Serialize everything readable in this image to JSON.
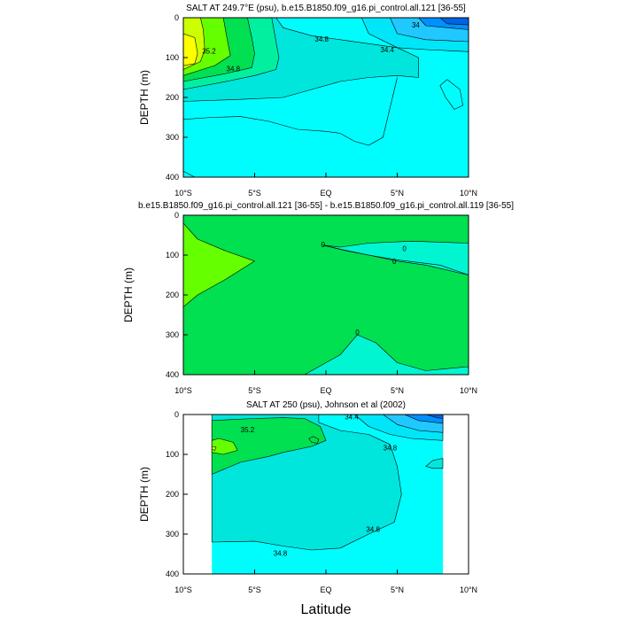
{
  "figure": {
    "xlabel": "Latitude",
    "ylabel": "DEPTH (m)",
    "x_ticks": [
      {
        "value": -10,
        "label": "10°S"
      },
      {
        "value": -5,
        "label": "5°S"
      },
      {
        "value": 0,
        "label": "EQ"
      },
      {
        "value": 5,
        "label": "5°N"
      },
      {
        "value": 10,
        "label": "10°N"
      }
    ],
    "y_ticks": [
      0,
      100,
      200,
      300,
      400
    ]
  },
  "chart_data": [
    {
      "type": "contour",
      "title": "SALT AT 249.7°E (psu), b.e15.B1850.f09_g16.pi_control.all.121 [36-55]",
      "xlim": [
        -10,
        10
      ],
      "ylim": [
        0,
        400
      ],
      "background": "#00fdfe",
      "regions": [
        {
          "color": "#00e6dc",
          "points": [
            [
              -10,
              210
            ],
            [
              -6,
              205
            ],
            [
              -3,
              200
            ],
            [
              -1,
              180
            ],
            [
              1,
              160
            ],
            [
              3,
              150
            ],
            [
              5,
              145
            ],
            [
              6.5,
              150
            ],
            [
              6.5,
              100
            ],
            [
              5,
              75
            ],
            [
              3,
              65
            ],
            [
              1,
              55
            ],
            [
              -1,
              45
            ],
            [
              -3,
              25
            ],
            [
              -3.5,
              0
            ],
            [
              -10,
              0
            ]
          ]
        },
        {
          "color": "#00f0a0",
          "points": [
            [
              -10,
              180
            ],
            [
              -7,
              160
            ],
            [
              -5,
              145
            ],
            [
              -3.5,
              130
            ],
            [
              -3.3,
              100
            ],
            [
              -3.5,
              60
            ],
            [
              -3.8,
              0
            ],
            [
              -10,
              0
            ]
          ]
        },
        {
          "color": "#00e050",
          "points": [
            [
              -10,
              160
            ],
            [
              -7,
              140
            ],
            [
              -5.2,
              125
            ],
            [
              -5,
              90
            ],
            [
              -5.2,
              50
            ],
            [
              -5.5,
              0
            ],
            [
              -10,
              0
            ]
          ]
        },
        {
          "color": "#66ff00",
          "points": [
            [
              -10,
              145
            ],
            [
              -7.8,
              120
            ],
            [
              -6.7,
              95
            ],
            [
              -7,
              40
            ],
            [
              -7.2,
              0
            ],
            [
              -10,
              0
            ]
          ]
        },
        {
          "color": "#ccff00",
          "points": [
            [
              -10,
              130
            ],
            [
              -8.8,
              110
            ],
            [
              -8.5,
              80
            ],
            [
              -8.6,
              30
            ],
            [
              -8.8,
              0
            ],
            [
              -10,
              0
            ]
          ]
        },
        {
          "color": "#ffff00",
          "points": [
            [
              -10,
              120
            ],
            [
              -9.2,
              115
            ],
            [
              -9,
              90
            ],
            [
              -9.2,
              50
            ],
            [
              -10,
              40
            ]
          ]
        },
        {
          "color": "#00e6f8",
          "points": [
            [
              2.5,
              0
            ],
            [
              3,
              40
            ],
            [
              5,
              75
            ],
            [
              7,
              80
            ],
            [
              10,
              85
            ],
            [
              10,
              0
            ]
          ]
        },
        {
          "color": "#20c8ff",
          "points": [
            [
              4.5,
              0
            ],
            [
              5,
              40
            ],
            [
              7,
              55
            ],
            [
              10,
              60
            ],
            [
              10,
              0
            ]
          ]
        },
        {
          "color": "#0090ff",
          "points": [
            [
              6.5,
              0
            ],
            [
              7,
              20
            ],
            [
              10,
              30
            ],
            [
              10,
              0
            ]
          ]
        },
        {
          "color": "#0064e6",
          "points": [
            [
              8,
              0
            ],
            [
              8.5,
              15
            ],
            [
              10,
              18
            ],
            [
              10,
              0
            ]
          ]
        }
      ],
      "contours": [
        {
          "points": [
            [
              -10,
              255
            ],
            [
              -8,
              250
            ],
            [
              -6,
              248
            ],
            [
              -4,
              260
            ],
            [
              -2,
              280
            ],
            [
              0,
              285
            ],
            [
              1,
              290
            ],
            [
              2,
              310
            ],
            [
              3,
              320
            ],
            [
              4,
              300
            ],
            [
              5,
              150
            ]
          ]
        },
        {
          "points": [
            [
              -10,
              385
            ],
            [
              -9.2,
              400
            ]
          ]
        },
        {
          "points": [
            [
              8,
              170
            ],
            [
              8.4,
              200
            ],
            [
              9,
              230
            ],
            [
              9.6,
              220
            ],
            [
              9.4,
              180
            ],
            [
              8.5,
              155
            ],
            [
              8,
              170
            ]
          ]
        }
      ],
      "labels": [
        {
          "text": "34.8",
          "x": -6.5,
          "y": 130
        },
        {
          "text": "35.2",
          "x": -8.2,
          "y": 85
        },
        {
          "text": "34.8",
          "x": -0.3,
          "y": 55
        },
        {
          "text": "34.4",
          "x": 4.3,
          "y": 82
        },
        {
          "text": "34",
          "x": 6.3,
          "y": 20
        }
      ]
    },
    {
      "type": "contour",
      "title": "b.e15.B1850.f09_g16.pi_control.all.121 [36-55] - b.e15.B1850.f09_g16.pi_control.all.119 [36-55]",
      "xlim": [
        -10,
        10
      ],
      "ylim": [
        0,
        400
      ],
      "background": "#00e050",
      "regions": [
        {
          "color": "#66ff00",
          "points": [
            [
              -10,
              20
            ],
            [
              -9,
              60
            ],
            [
              -7,
              90
            ],
            [
              -5,
              115
            ],
            [
              -7,
              160
            ],
            [
              -9,
              200
            ],
            [
              -10,
              230
            ]
          ]
        },
        {
          "color": "#00f5d0",
          "points": [
            [
              -0.2,
              75
            ],
            [
              1.5,
              90
            ],
            [
              3,
              100
            ],
            [
              5,
              115
            ],
            [
              7,
              125
            ],
            [
              10,
              150
            ],
            [
              10,
              70
            ],
            [
              6,
              65
            ],
            [
              3,
              70
            ],
            [
              1,
              80
            ],
            [
              -0.2,
              75
            ]
          ]
        },
        {
          "color": "#00f5d0",
          "points": [
            [
              -1.5,
              400
            ],
            [
              1,
              350
            ],
            [
              2.2,
              300
            ],
            [
              3.5,
              320
            ],
            [
              5,
              370
            ],
            [
              7,
              390
            ],
            [
              10,
              380
            ],
            [
              10,
              400
            ]
          ]
        }
      ],
      "contours": [
        {
          "points": [
            [
              -0.2,
              75
            ],
            [
              1,
              85
            ],
            [
              3,
              100
            ],
            [
              5,
              112
            ],
            [
              8,
              125
            ],
            [
              10,
              150
            ]
          ]
        }
      ],
      "labels": [
        {
          "text": "0",
          "x": -0.2,
          "y": 75
        },
        {
          "text": "0",
          "x": 5.5,
          "y": 85
        },
        {
          "text": "0",
          "x": 4.8,
          "y": 118
        },
        {
          "text": "0",
          "x": 2.2,
          "y": 295
        }
      ]
    },
    {
      "type": "contour",
      "title": "SALT AT 250 (psu), Johnson et al (2002)",
      "xlim": [
        -10,
        10
      ],
      "ylim": [
        0,
        400
      ],
      "data_extent": [
        -8,
        8.2
      ],
      "background": "#00fdfe",
      "regions": [
        {
          "color": "#00e6dc",
          "points": [
            [
              -8,
              320
            ],
            [
              -5,
              318
            ],
            [
              -3,
              330
            ],
            [
              -1,
              340
            ],
            [
              1,
              335
            ],
            [
              3,
              300
            ],
            [
              4.8,
              270
            ],
            [
              5.3,
              200
            ],
            [
              5,
              130
            ],
            [
              4.5,
              75
            ],
            [
              3,
              50
            ],
            [
              1,
              40
            ],
            [
              -0.5,
              20
            ],
            [
              -0.5,
              0
            ],
            [
              -8,
              0
            ]
          ]
        },
        {
          "color": "#00e050",
          "points": [
            [
              -8,
              150
            ],
            [
              -6,
              120
            ],
            [
              -4,
              105
            ],
            [
              -3,
              95
            ],
            [
              -1,
              80
            ],
            [
              0,
              65
            ],
            [
              -0.4,
              30
            ],
            [
              -1.5,
              10
            ],
            [
              -3,
              8
            ],
            [
              -5,
              10
            ],
            [
              -8,
              15
            ]
          ]
        },
        {
          "color": "#66ff00",
          "points": [
            [
              -8,
              95
            ],
            [
              -7.2,
              100
            ],
            [
              -6.2,
              90
            ],
            [
              -6.5,
              70
            ],
            [
              -7.5,
              60
            ],
            [
              -8,
              65
            ]
          ]
        },
        {
          "color": "#ccff00",
          "points": [
            [
              -8,
              87
            ],
            [
              -7.8,
              90
            ],
            [
              -7.7,
              82
            ],
            [
              -8,
              80
            ]
          ]
        },
        {
          "color": "#00e050",
          "points": [
            [
              -1.2,
              60
            ],
            [
              -1,
              70
            ],
            [
              -0.6,
              72
            ],
            [
              -0.5,
              62
            ],
            [
              -0.9,
              55
            ],
            [
              -1.2,
              60
            ]
          ]
        },
        {
          "color": "#00e6f8",
          "points": [
            [
              2,
              0
            ],
            [
              3,
              30
            ],
            [
              4.5,
              50
            ],
            [
              6,
              60
            ],
            [
              8.2,
              65
            ],
            [
              8.2,
              0
            ]
          ]
        },
        {
          "color": "#20c8ff",
          "points": [
            [
              4,
              0
            ],
            [
              5,
              25
            ],
            [
              6.5,
              40
            ],
            [
              8.2,
              45
            ],
            [
              8.2,
              0
            ]
          ]
        },
        {
          "color": "#0090ff",
          "points": [
            [
              5.5,
              0
            ],
            [
              6.5,
              15
            ],
            [
              8.2,
              22
            ],
            [
              8.2,
              0
            ]
          ]
        },
        {
          "color": "#0064e6",
          "points": [
            [
              7,
              0
            ],
            [
              7.8,
              8
            ],
            [
              8.2,
              10
            ],
            [
              8.2,
              0
            ]
          ]
        },
        {
          "color": "#00e6dc",
          "points": [
            [
              7,
              130
            ],
            [
              7.5,
              135
            ],
            [
              8.2,
              135
            ],
            [
              8.2,
              110
            ],
            [
              7.5,
              115
            ],
            [
              7,
              130
            ]
          ]
        }
      ],
      "contours": [],
      "labels": [
        {
          "text": "35.2",
          "x": -5.5,
          "y": 40
        },
        {
          "text": "34.4",
          "x": 1.8,
          "y": 8
        },
        {
          "text": "34.8",
          "x": 4.5,
          "y": 85
        },
        {
          "text": "34.8",
          "x": 3.3,
          "y": 290
        },
        {
          "text": "34.8",
          "x": -3.2,
          "y": 350
        }
      ]
    }
  ]
}
